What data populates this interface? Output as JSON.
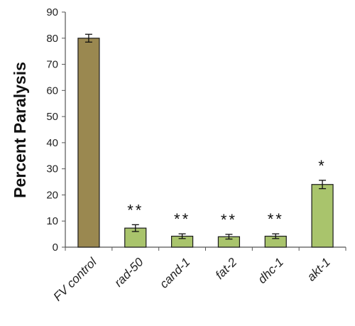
{
  "chart_data": {
    "type": "bar",
    "ylabel": "Percent Paralysis",
    "xlabel": "",
    "ylim": [
      0,
      90
    ],
    "yticks": [
      0,
      10,
      20,
      30,
      40,
      50,
      60,
      70,
      80,
      90
    ],
    "grid": false,
    "categories": [
      "FV control",
      "rad-50",
      "cand-1",
      "fat-2",
      "dhc-1",
      "akt-1"
    ],
    "values": [
      80,
      7.3,
      4.2,
      4.0,
      4.2,
      24
    ],
    "errors": [
      1.5,
      1.3,
      0.9,
      0.9,
      0.9,
      1.6
    ],
    "significance": [
      "",
      "**",
      "**",
      "**",
      "**",
      "*"
    ],
    "colors": {
      "control": "#9a8850",
      "treatment": "#a9c46c",
      "bar_stroke": "#1a1a1a",
      "axis": "#555555"
    }
  }
}
